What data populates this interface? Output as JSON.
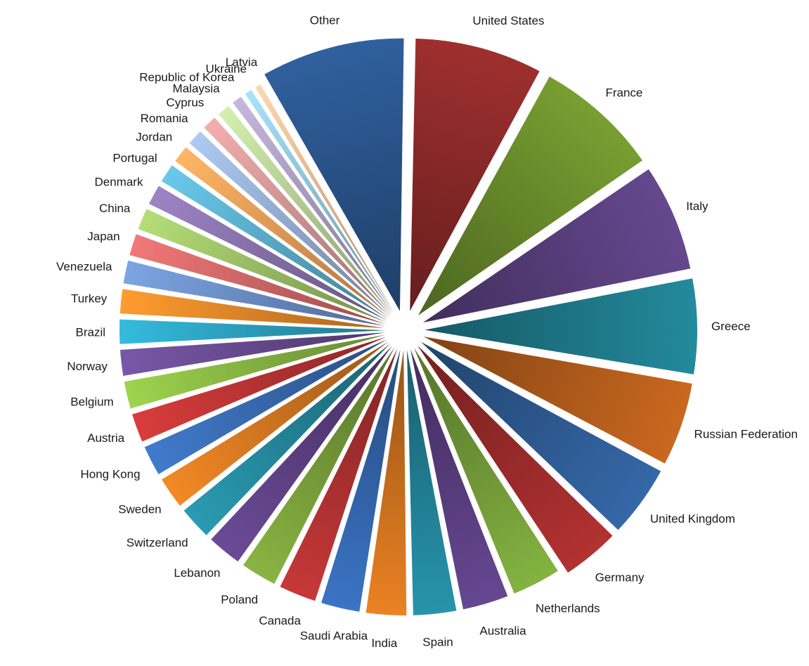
{
  "chart_data": {
    "type": "pie",
    "style": "exploded",
    "title": "",
    "legend": "none",
    "grid": false,
    "categories": [
      "United States",
      "France",
      "Italy",
      "Greece",
      "Russian Federation",
      "United Kingdom",
      "Germany",
      "Netherlands",
      "Australia",
      "Spain",
      "India",
      "Saudi Arabia",
      "Canada",
      "Poland",
      "Lebanon",
      "Switzerland",
      "Sweden",
      "Hong Kong",
      "Austria",
      "Belgium",
      "Norway",
      "Brazil",
      "Turkey",
      "Venezuela",
      "Japan",
      "China",
      "Denmark",
      "Portugal",
      "Jordan",
      "Romania",
      "Cyprus",
      "Malaysia",
      "Republic of Korea",
      "Ukraine",
      "Latvia",
      "Other"
    ],
    "values": [
      9.0,
      8.8,
      7.6,
      6.8,
      6.0,
      5.2,
      4.2,
      3.7,
      3.5,
      3.3,
      3.1,
      3.0,
      2.9,
      2.8,
      2.7,
      2.6,
      2.5,
      2.4,
      2.3,
      2.2,
      2.1,
      2.0,
      2.0,
      1.9,
      1.8,
      1.8,
      1.7,
      1.6,
      1.5,
      1.4,
      1.3,
      1.2,
      1.0,
      0.8,
      0.7,
      10.1
    ],
    "colors": [
      "#8e2a2a",
      "#6b8e2c",
      "#5a4080",
      "#1f7b8c",
      "#b45d1c",
      "#2f5d96",
      "#a02c2c",
      "#76a03a",
      "#5b3f82",
      "#23849a",
      "#d2741f",
      "#3568b0",
      "#b23232",
      "#7aa13b",
      "#5f4286",
      "#258a9f",
      "#d97a22",
      "#3a6eb6",
      "#c23636",
      "#8dbd46",
      "#6c4e96",
      "#2ea7c6",
      "#f08b2a",
      "#6f93cc",
      "#d86b6b",
      "#a2c66a",
      "#8c76b0",
      "#5fb3d2",
      "#f6a25a",
      "#9bb4d9",
      "#d89b9b",
      "#bdd69c",
      "#b1a3c8",
      "#96cbe0",
      "#f8c09a",
      "#2b568e"
    ]
  }
}
